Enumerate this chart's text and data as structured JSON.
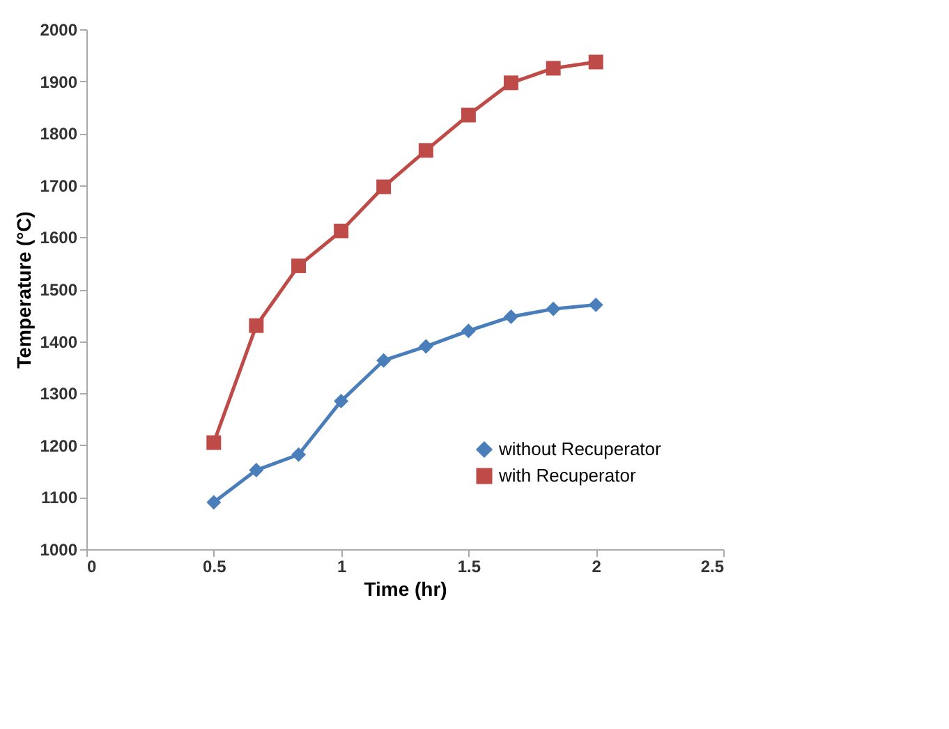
{
  "chart_data": {
    "type": "line",
    "xlabel": "Time (hr)",
    "ylabel": "Temperature (°C)",
    "x": [
      0.5,
      0.667,
      0.833,
      1.0,
      1.167,
      1.333,
      1.5,
      1.667,
      1.833,
      2.0
    ],
    "xlim": [
      0,
      2.5
    ],
    "xticks": [
      0,
      0.5,
      1,
      1.5,
      2,
      2.5
    ],
    "ylim": [
      1000,
      2000
    ],
    "yticks": [
      1000,
      1100,
      1200,
      1300,
      1400,
      1500,
      1600,
      1700,
      1800,
      1900,
      2000
    ],
    "grid": false,
    "legend": "bottom right",
    "line_style": "solid",
    "series": [
      {
        "name": "without Recuperator",
        "color": "#4a7ebb",
        "marker": "diamond",
        "values": [
          1090,
          1152,
          1182,
          1285,
          1363,
          1390,
          1420,
          1447,
          1462,
          1470
        ]
      },
      {
        "name": "with Recuperator",
        "color": "#be4b48",
        "marker": "square",
        "values": [
          1205,
          1430,
          1545,
          1612,
          1697,
          1767,
          1835,
          1897,
          1925,
          1937
        ]
      }
    ]
  }
}
